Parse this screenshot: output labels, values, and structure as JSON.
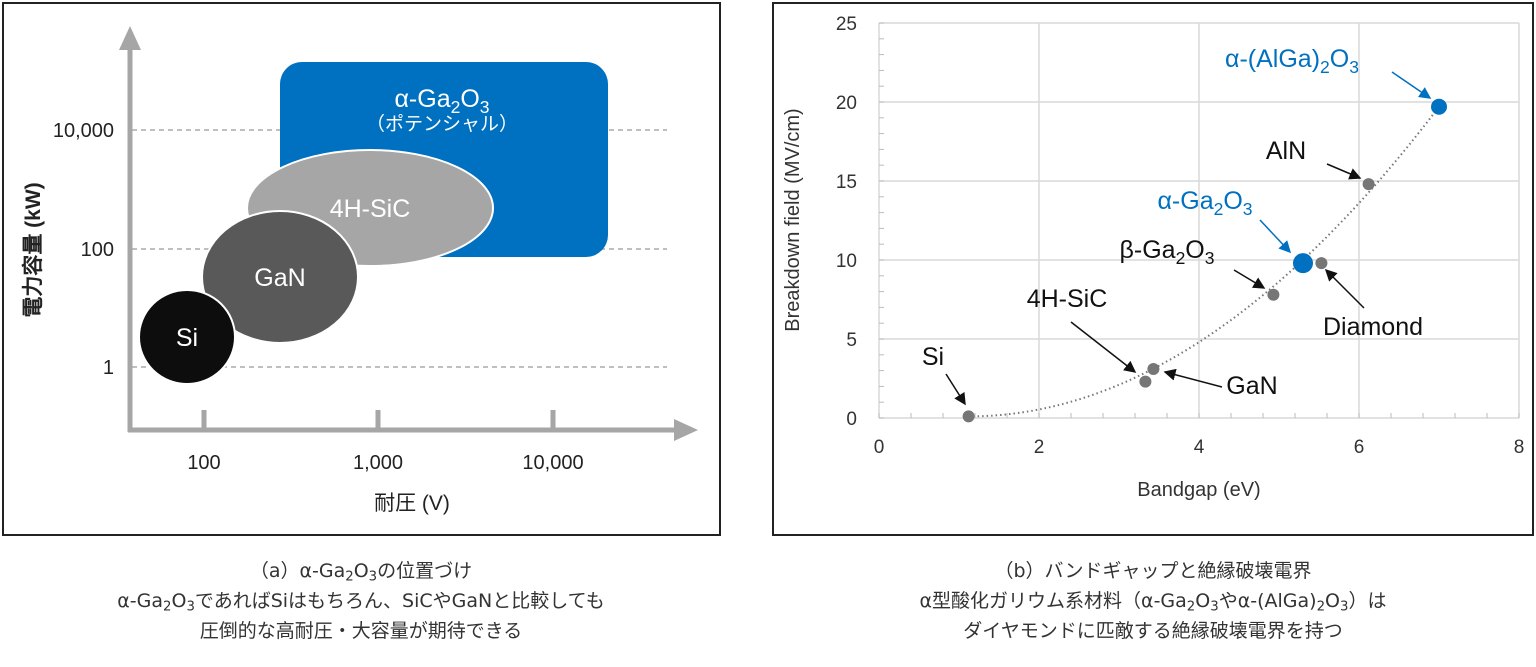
{
  "panel_a": {
    "y_label": "電力容量 (kW)",
    "x_label": "耐圧 (V)",
    "y_ticks": [
      "10,000",
      "100",
      "1"
    ],
    "x_ticks": [
      "100",
      "1,000",
      "10,000"
    ],
    "regions": {
      "alpha_ga2o3": {
        "label": "α-Ga2O3",
        "sublabel": "（ポテンシャル）",
        "color": "#0070c0"
      },
      "sic": {
        "label": "4H-SiC",
        "color": "#a6a6a6"
      },
      "gan": {
        "label": "GaN",
        "color": "#595959"
      },
      "si": {
        "label": "Si",
        "color": "#0d0d0d"
      }
    }
  },
  "chart_data": [
    {
      "type": "region",
      "title": "",
      "xlabel": "耐圧 (V)",
      "ylabel": "電力容量 (kW)",
      "x_scale": "log",
      "y_scale": "log",
      "x_ticks": [
        100,
        1000,
        10000
      ],
      "y_ticks": [
        1,
        100,
        10000
      ],
      "series": [
        {
          "name": "Si",
          "x_range": [
            50,
            120
          ],
          "y_range": [
            0.3,
            10
          ]
        },
        {
          "name": "GaN",
          "x_range": [
            70,
            500
          ],
          "y_range": [
            3,
            300
          ]
        },
        {
          "name": "4H-SiC",
          "x_range": [
            250,
            4000
          ],
          "y_range": [
            80,
            3000
          ]
        },
        {
          "name": "α-Ga2O3 (ポテンシャル)",
          "x_range": [
            300,
            20000
          ],
          "y_range": [
            100,
            100000
          ]
        }
      ]
    },
    {
      "type": "scatter",
      "title": "",
      "xlabel": "Bandgap (eV)",
      "ylabel": "Breakdown field (MV/cm)",
      "xlim": [
        0,
        8
      ],
      "ylim": [
        0,
        25
      ],
      "x_ticks": [
        0,
        2,
        4,
        6,
        8
      ],
      "y_ticks": [
        0,
        5,
        10,
        15,
        20,
        25
      ],
      "grid": true,
      "trendline": "dotted",
      "points": [
        {
          "name": "Si",
          "x": 1.12,
          "y": 0.1,
          "highlight": false
        },
        {
          "name": "4H-SiC",
          "x": 3.33,
          "y": 2.3,
          "highlight": false
        },
        {
          "name": "GaN",
          "x": 3.43,
          "y": 3.1,
          "highlight": false
        },
        {
          "name": "β-Ga2O3",
          "x": 4.93,
          "y": 7.8,
          "highlight": false
        },
        {
          "name": "α-Ga2O3",
          "x": 5.3,
          "y": 9.8,
          "highlight": true
        },
        {
          "name": "Diamond",
          "x": 5.53,
          "y": 9.8,
          "highlight": false
        },
        {
          "name": "AlN",
          "x": 6.12,
          "y": 14.8,
          "highlight": false
        },
        {
          "name": "α-(AlGa)2O3",
          "x": 7.0,
          "y": 19.7,
          "highlight": true
        }
      ],
      "colors": {
        "highlight": "#0070c0",
        "normal": "#767676",
        "grid": "#d9d9d9"
      }
    }
  ],
  "caption_a": {
    "line1": "（a）α-Ga2O3の位置づけ",
    "line2": "α-Ga2O3であればSiはもちろん、SiCやGaNと比較しても",
    "line3": "圧倒的な高耐圧・大容量が期待できる"
  },
  "caption_b": {
    "line1": "（b）バンドギャップと絶縁破壊電界",
    "line2": "α型酸化ガリウム系材料（α-Ga2O3やα-(AlGa)2O3）は",
    "line3": "ダイヤモンドに匹敵する絶縁破壊電界を持つ"
  }
}
